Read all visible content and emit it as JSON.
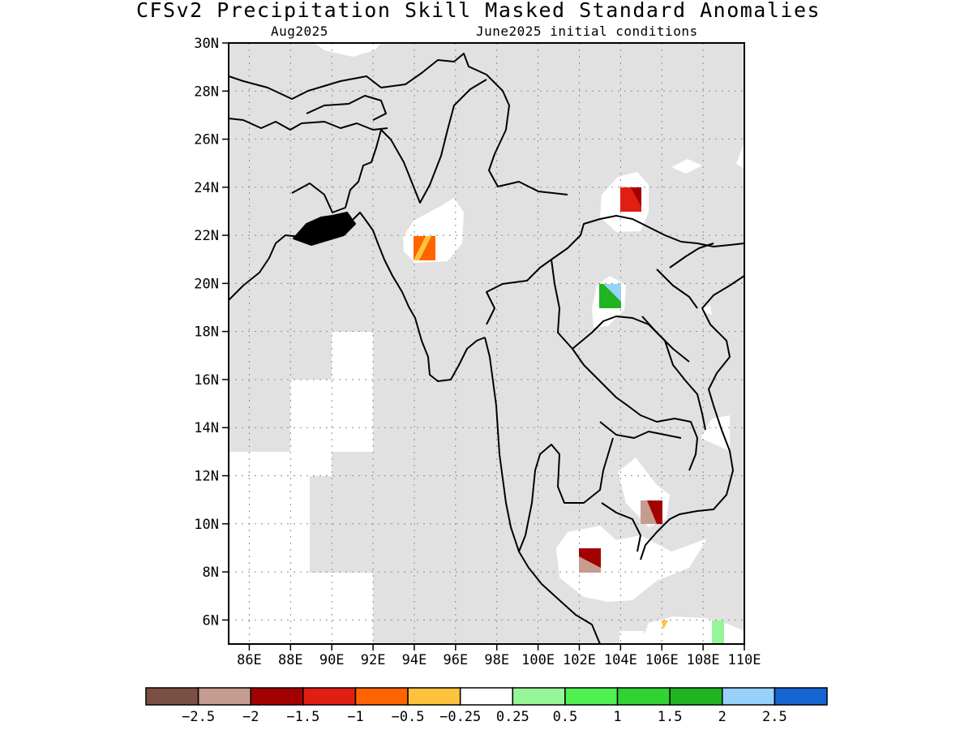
{
  "title": "CFSv2 Precipitation Skill Masked Standard Anomalies",
  "subtitle_left": "Aug2025",
  "subtitle_right": "June2025 initial conditions",
  "map": {
    "lat_ticks": [
      "30N",
      "28N",
      "26N",
      "24N",
      "22N",
      "20N",
      "18N",
      "16N",
      "14N",
      "12N",
      "10N",
      "8N",
      "6N"
    ],
    "lon_ticks": [
      "86E",
      "88E",
      "90E",
      "92E",
      "94E",
      "96E",
      "98E",
      "100E",
      "102E",
      "104E",
      "106E",
      "108E",
      "110E"
    ],
    "lat_range": [
      5,
      30
    ],
    "lon_range": [
      85,
      110
    ],
    "grid": "dotted",
    "masked_color": "#e1e1e1",
    "anomaly_cells": [
      {
        "lon": 94.8,
        "lat": 21.5,
        "colors": [
          "#ffc23c",
          "#ff6400"
        ],
        "label": "-0.5 to -1"
      },
      {
        "lon": 104.3,
        "lat": 23.5,
        "colors": [
          "#e01e12",
          "#a30000"
        ],
        "label": "-1 to -1.5"
      },
      {
        "lon": 104.0,
        "lat": 19.5,
        "colors": [
          "#20b420",
          "#96d2fa"
        ],
        "label": "1.5 to 2"
      },
      {
        "lon": 105.7,
        "lat": 10.5,
        "colors": [
          "#c69c90",
          "#a30000"
        ],
        "label": "-2 to -1.5"
      },
      {
        "lon": 102.5,
        "lat": 8.5,
        "colors": [
          "#c69c90",
          "#a30000"
        ],
        "label": "-2 to -1.5"
      },
      {
        "lon": 108.5,
        "lat": 5.5,
        "colors": [
          "#96f596"
        ],
        "label": "0.25 to 0.5"
      },
      {
        "lon": 106.2,
        "lat": 5.8,
        "colors": [
          "#ffc23c"
        ],
        "label": "-0.25 to -0.5"
      }
    ]
  },
  "colorbar": {
    "labels": [
      "−2.5",
      "−2",
      "−1.5",
      "−1",
      "−0.5",
      "−0.25",
      "0.25",
      "0.5",
      "1",
      "1.5",
      "2",
      "2.5"
    ],
    "colors": [
      "#7a5045",
      "#c69c90",
      "#a30000",
      "#e01e12",
      "#ff6400",
      "#ffc23c",
      "#ffffff",
      "#96f596",
      "#50f050",
      "#32d232",
      "#20b420",
      "#96d2fa",
      "#1464d2"
    ]
  }
}
